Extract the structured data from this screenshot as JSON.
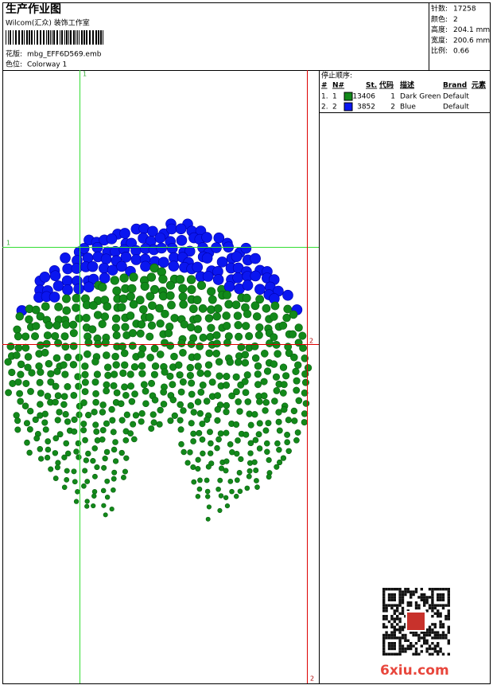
{
  "header": {
    "title": "生产作业图",
    "studio": "Wilcom(汇众) 装饰工作室",
    "design_label": "花版:",
    "design_file": "mbg_EFF6D569.emb",
    "colorway_label": "色位:",
    "colorway": "Colorway 1"
  },
  "info": [
    {
      "label": "针数:",
      "value": "17258"
    },
    {
      "label": "颜色:",
      "value": "2"
    },
    {
      "label": "高度:",
      "value": "204.1 mm"
    },
    {
      "label": "宽度:",
      "value": "200.6 mm"
    },
    {
      "label": "比例:",
      "value": "0.66"
    }
  ],
  "stops": {
    "title": "停止顺序:",
    "columns": [
      "#",
      "N#",
      "St.",
      "代码",
      "描述",
      "Brand",
      "元素"
    ],
    "rows": [
      {
        "index": "1.",
        "needle": "1",
        "color": "#12891a",
        "stitches": "13406",
        "code": "1",
        "description": "Dark Green",
        "brand": "Default"
      },
      {
        "index": "2.",
        "needle": "2",
        "color": "#0a16f0",
        "stitches": "3852",
        "code": "2",
        "description": "Blue",
        "brand": "Default"
      }
    ]
  },
  "guides": {
    "green_v": "1",
    "green_h": "1",
    "red_v": "2",
    "red_h": "2"
  },
  "watermark": "6xiu.com"
}
